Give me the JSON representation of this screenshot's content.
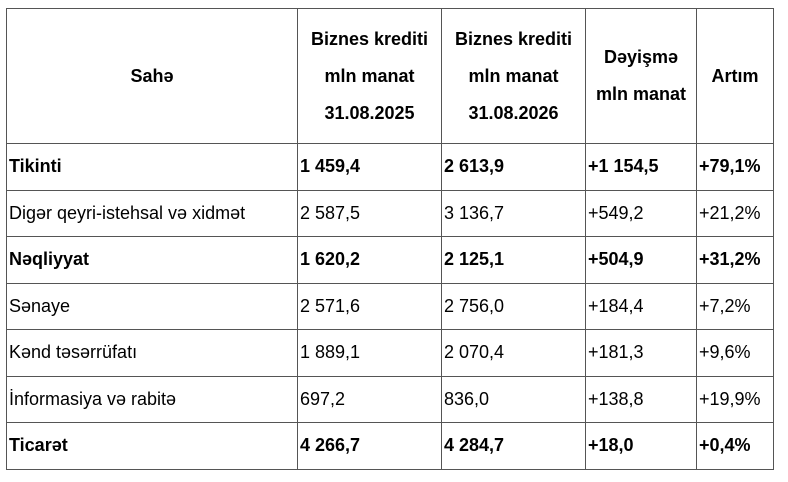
{
  "table": {
    "header": [
      [
        "Sahə"
      ],
      [
        "Biznes krediti",
        "mln manat",
        "31.08.2025"
      ],
      [
        "Biznes krediti",
        "mln manat",
        "31.08.2026"
      ],
      [
        "Dəyişmə",
        "mln manat"
      ],
      [
        "Artım"
      ]
    ],
    "rows": [
      {
        "bold": true,
        "cells": [
          "Tikinti",
          "1 459,4",
          "2 613,9",
          "+1 154,5",
          "+79,1%"
        ]
      },
      {
        "bold": false,
        "cells": [
          "Digər qeyri-istehsal və xidmət",
          "2 587,5",
          "3 136,7",
          "+549,2",
          "+21,2%"
        ]
      },
      {
        "bold": true,
        "cells": [
          "Nəqliyyat",
          "1 620,2",
          "2 125,1",
          "+504,9",
          "+31,2%"
        ]
      },
      {
        "bold": false,
        "cells": [
          "Sənaye",
          "2 571,6",
          "2 756,0",
          "+184,4",
          "+7,2%"
        ]
      },
      {
        "bold": false,
        "cells": [
          "Kənd təsərrüfatı",
          "1 889,1",
          "2 070,4",
          "+181,3",
          "+9,6%"
        ]
      },
      {
        "bold": false,
        "cells": [
          "İnformasiya və rabitə",
          "697,2",
          "836,0",
          "+138,8",
          "+19,9%"
        ]
      },
      {
        "bold": true,
        "cells": [
          "Ticarət",
          "4 266,7",
          "4 284,7",
          "+18,0",
          "+0,4%"
        ]
      }
    ]
  }
}
